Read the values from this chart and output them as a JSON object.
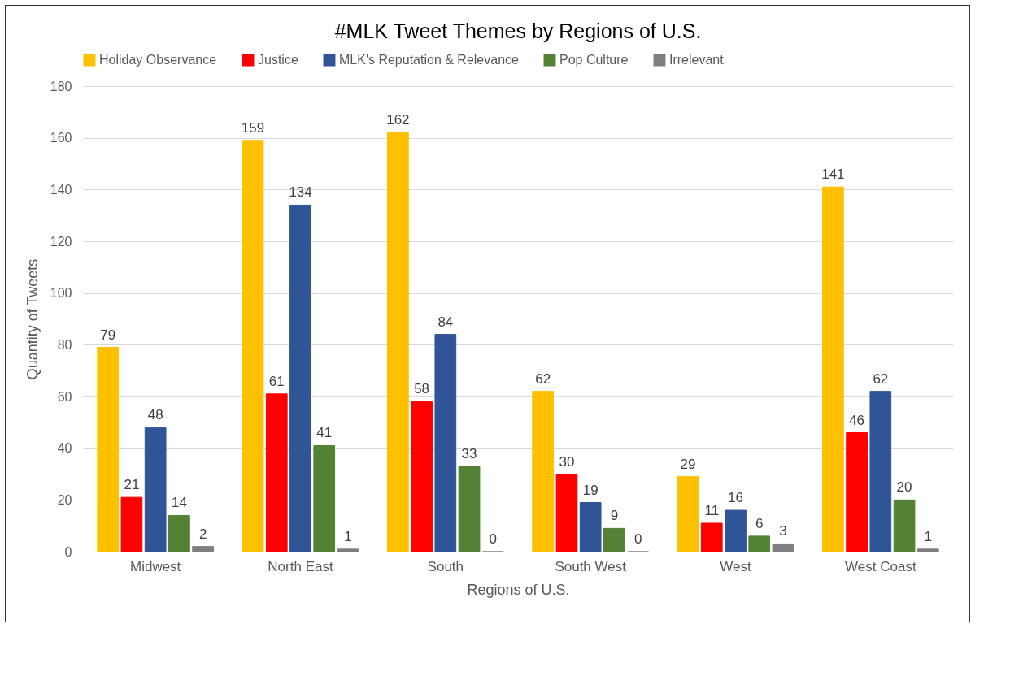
{
  "chart_data": {
    "type": "bar",
    "title": "#MLK Tweet Themes by Regions of U.S.",
    "xlabel": "Regions of U.S.",
    "ylabel": "Quantity of Tweets",
    "categories": [
      "Midwest",
      "North East",
      "South",
      "South West",
      "West",
      "West Coast"
    ],
    "series": [
      {
        "name": "Holiday Observance",
        "color": "#ffc000",
        "values": [
          79,
          159,
          162,
          62,
          29,
          141
        ]
      },
      {
        "name": "Justice",
        "color": "#ff0000",
        "values": [
          21,
          61,
          58,
          30,
          11,
          46
        ]
      },
      {
        "name": "MLK's Reputation & Relevance",
        "color": "#2f5597",
        "values": [
          48,
          134,
          84,
          19,
          16,
          62
        ]
      },
      {
        "name": "Pop Culture",
        "color": "#548235",
        "values": [
          14,
          41,
          33,
          9,
          6,
          20
        ]
      },
      {
        "name": "Irrelevant",
        "color": "#7f7f7f",
        "values": [
          2,
          1,
          0,
          0,
          3,
          1
        ]
      }
    ],
    "ylim": [
      0,
      180
    ],
    "yticks": [
      0,
      20,
      40,
      60,
      80,
      100,
      120,
      140,
      160,
      180
    ],
    "grid": "y",
    "legend": "top",
    "data_labels": true
  }
}
